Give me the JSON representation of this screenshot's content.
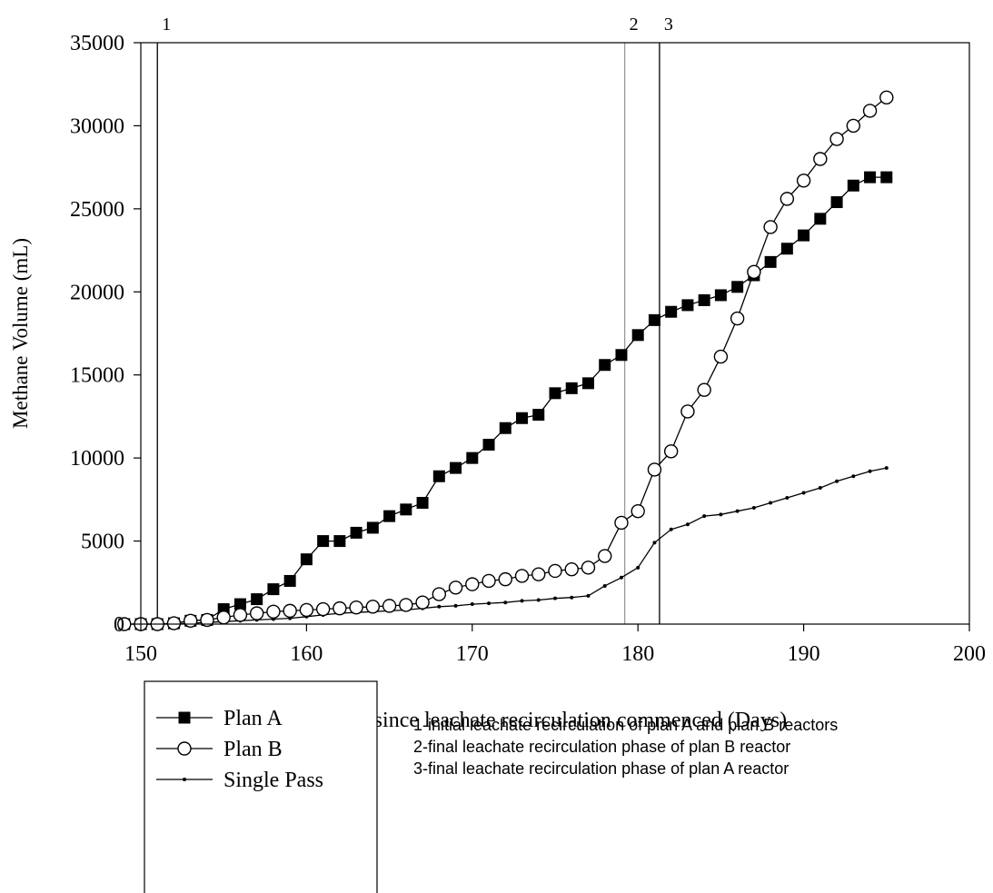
{
  "chart_data": {
    "type": "line",
    "xlabel": "Time since leachate recirculation commenced (Days)",
    "ylabel": "Methane Volume (mL)",
    "xlim": [
      150,
      200
    ],
    "ylim": [
      0,
      35000
    ],
    "xticks": [
      150,
      160,
      170,
      180,
      190,
      200
    ],
    "yticks": [
      0,
      5000,
      10000,
      15000,
      20000,
      25000,
      30000,
      35000
    ],
    "grid": false,
    "legend_position": "bottom-left",
    "series": [
      {
        "name": "Plan A",
        "marker": "filled-square",
        "x": [
          149,
          150,
          151,
          152,
          153,
          154,
          155,
          156,
          157,
          158,
          159,
          160,
          161,
          162,
          163,
          164,
          165,
          166,
          167,
          168,
          169,
          170,
          171,
          172,
          173,
          174,
          175,
          176,
          177,
          178,
          179,
          180,
          181,
          182,
          183,
          184,
          185,
          186,
          187,
          188,
          189,
          190,
          191,
          192,
          193,
          194,
          195
        ],
        "y": [
          0,
          0,
          0,
          50,
          200,
          250,
          900,
          1200,
          1500,
          2100,
          2600,
          3900,
          5000,
          5000,
          5500,
          5800,
          6500,
          6900,
          7300,
          8900,
          9400,
          10000,
          10800,
          11800,
          12400,
          12600,
          13900,
          14200,
          14500,
          15600,
          16200,
          17400,
          18300,
          18800,
          19200,
          19500,
          19800,
          20300,
          21000,
          21800,
          22600,
          23400,
          24400,
          25400,
          26400,
          26900,
          26900
        ],
        "color": "#000000"
      },
      {
        "name": "Plan B",
        "marker": "open-circle",
        "x": [
          149,
          150,
          151,
          152,
          153,
          154,
          155,
          156,
          157,
          158,
          159,
          160,
          161,
          162,
          163,
          164,
          165,
          166,
          167,
          168,
          169,
          170,
          171,
          172,
          173,
          174,
          175,
          176,
          177,
          178,
          179,
          180,
          181,
          182,
          183,
          184,
          185,
          186,
          187,
          188,
          189,
          190,
          191,
          192,
          193,
          194,
          195
        ],
        "y": [
          0,
          0,
          0,
          50,
          200,
          250,
          400,
          550,
          650,
          750,
          800,
          850,
          900,
          950,
          1000,
          1050,
          1100,
          1150,
          1300,
          1800,
          2200,
          2400,
          2600,
          2700,
          2900,
          3000,
          3200,
          3300,
          3400,
          4100,
          6100,
          6800,
          9300,
          10400,
          12800,
          14100,
          16100,
          18400,
          21200,
          23900,
          25600,
          26700,
          28000,
          29200,
          30000,
          30900,
          31700
        ],
        "color": "#000000"
      },
      {
        "name": "Single Pass",
        "marker": "small-dot",
        "x": [
          149,
          150,
          151,
          152,
          153,
          154,
          155,
          156,
          157,
          158,
          159,
          160,
          161,
          162,
          163,
          164,
          165,
          166,
          167,
          168,
          169,
          170,
          171,
          172,
          173,
          174,
          175,
          176,
          177,
          178,
          179,
          180,
          181,
          182,
          183,
          184,
          185,
          186,
          187,
          188,
          189,
          190,
          191,
          192,
          193,
          194,
          195
        ],
        "y": [
          0,
          0,
          0,
          0,
          50,
          100,
          150,
          200,
          250,
          300,
          350,
          450,
          550,
          650,
          700,
          750,
          800,
          850,
          950,
          1050,
          1100,
          1200,
          1250,
          1300,
          1400,
          1450,
          1550,
          1600,
          1700,
          2300,
          2800,
          3400,
          4900,
          5700,
          6000,
          6500,
          6600,
          6800,
          7000,
          7300,
          7600,
          7900,
          8200,
          8600,
          8900,
          9200,
          9400
        ],
        "color": "#000000"
      }
    ],
    "vertical_lines": [
      {
        "label": "1",
        "x": 151,
        "color": "#000000"
      },
      {
        "label": "2",
        "x": 179.2,
        "color": "#999999"
      },
      {
        "label": "3",
        "x": 181.3,
        "color": "#000000"
      }
    ],
    "notes": [
      "1-initial leachate recirculation of plan A and plan B reactors",
      "2-final leachate recirculation phase of plan B reactor",
      "3-final leachate recirculation phase of plan A reactor"
    ]
  }
}
